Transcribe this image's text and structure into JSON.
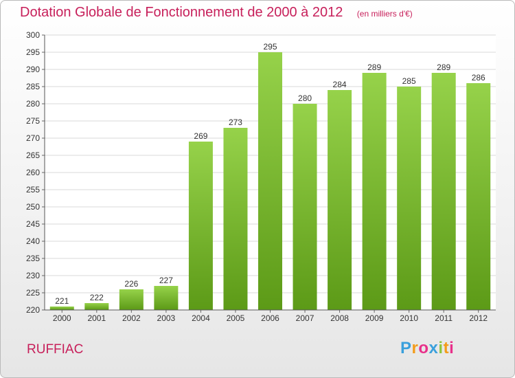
{
  "title": "Dotation Globale de Fonctionnement de 2000 à 2012",
  "subtitle": "(en milliers d'€)",
  "commune": "RUFFIAC",
  "logo": {
    "letters": [
      "P",
      "r",
      "o",
      "x",
      "i",
      "t",
      "i"
    ],
    "colors": [
      "#3aa0dc",
      "#f39c1b",
      "#e8308a",
      "#3aa0dc",
      "#8dc63f",
      "#f39c1b",
      "#e8308a"
    ]
  },
  "colors": {
    "title": "#c71f5a",
    "bar_top": "#96d24a",
    "bar_bottom": "#5c9a17",
    "grid": "#d8d8d8"
  },
  "chart_data": {
    "type": "bar",
    "categories": [
      "2000",
      "2001",
      "2002",
      "2003",
      "2004",
      "2005",
      "2006",
      "2007",
      "2008",
      "2009",
      "2010",
      "2011",
      "2012"
    ],
    "values": [
      221,
      222,
      226,
      227,
      269,
      273,
      295,
      280,
      284,
      289,
      285,
      289,
      286
    ],
    "title": "Dotation Globale de Fonctionnement de 2000 à 2012",
    "subtitle": "(en milliers d'€)",
    "ylim": [
      220,
      300
    ],
    "yticks": [
      220,
      225,
      230,
      235,
      240,
      245,
      250,
      255,
      260,
      265,
      270,
      275,
      280,
      285,
      290,
      295,
      300
    ],
    "grid": true,
    "legend": "none"
  }
}
